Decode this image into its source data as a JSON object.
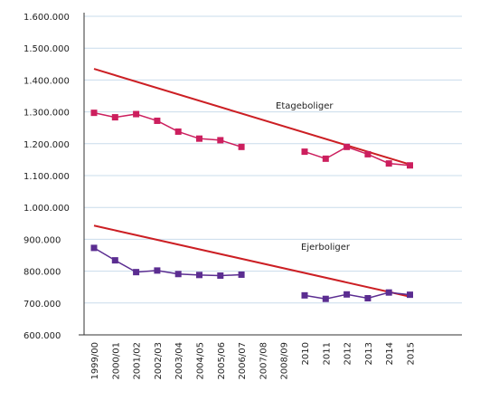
{
  "chart_data": {
    "type": "line",
    "title": "",
    "xlabel": "",
    "ylabel": "",
    "categories": [
      "1999/00",
      "2000/01",
      "2001/02",
      "2002/03",
      "2003/04",
      "2004/05",
      "2005/06",
      "2006/07",
      "2007/08",
      "2008/09",
      "2010",
      "2011",
      "2012",
      "2013",
      "2014",
      "2015"
    ],
    "y_tick_labels": [
      "1.600.000",
      "1.500.000",
      "1.400.000",
      "1.300.000",
      "1.200.000",
      "1.100.000",
      "1.000.000",
      "900.000",
      "800.000",
      "700.000",
      "600.000"
    ],
    "ylim": [
      600000,
      1600000
    ],
    "grid": true,
    "legend": "none",
    "series": [
      {
        "name": "Etageboliger",
        "color": "#cc1f5e",
        "values": [
          1297000,
          1283000,
          1293000,
          1272000,
          1238000,
          1216000,
          1211000,
          1190000,
          null,
          null,
          1175000,
          1153000,
          1190000,
          1167000,
          1138000,
          1132000
        ]
      },
      {
        "name": "Ejerboliger",
        "color": "#5b2d91",
        "values": [
          873000,
          834000,
          797000,
          802000,
          791000,
          788000,
          786000,
          789000,
          null,
          null,
          724000,
          713000,
          727000,
          715000,
          733000,
          726000
        ]
      }
    ],
    "trendlines": [
      {
        "series": "Etageboliger",
        "color": "#cc1f24",
        "start": 1435000,
        "end": 1135000
      },
      {
        "series": "Ejerboliger",
        "color": "#cc1f24",
        "start": 943000,
        "end": 720000
      }
    ]
  }
}
